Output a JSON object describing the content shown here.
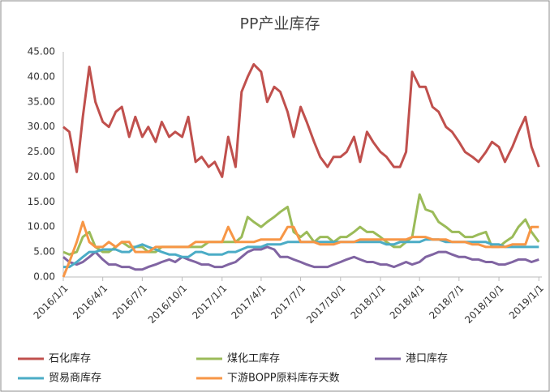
{
  "chart_data": {
    "type": "line",
    "title": "PP产业库存",
    "x": [
      "2016/1/1",
      "2016/1/15",
      "2016/2/1",
      "2016/2/15",
      "2016/3/1",
      "2016/3/15",
      "2016/4/1",
      "2016/4/15",
      "2016/5/1",
      "2016/5/15",
      "2016/6/1",
      "2016/6/15",
      "2016/7/1",
      "2016/7/15",
      "2016/8/1",
      "2016/8/15",
      "2016/9/1",
      "2016/9/15",
      "2016/10/1",
      "2016/10/15",
      "2016/11/1",
      "2016/11/15",
      "2016/12/1",
      "2016/12/15",
      "2017/1/1",
      "2017/1/15",
      "2017/2/1",
      "2017/2/15",
      "2017/3/1",
      "2017/3/15",
      "2017/4/1",
      "2017/4/15",
      "2017/5/1",
      "2017/5/15",
      "2017/6/1",
      "2017/6/15",
      "2017/7/1",
      "2017/7/15",
      "2017/8/1",
      "2017/8/15",
      "2017/9/1",
      "2017/9/15",
      "2017/10/1",
      "2017/10/15",
      "2017/11/1",
      "2017/11/15",
      "2017/12/1",
      "2017/12/15",
      "2018/1/1",
      "2018/1/15",
      "2018/2/1",
      "2018/2/15",
      "2018/3/1",
      "2018/3/15",
      "2018/4/1",
      "2018/4/15",
      "2018/5/1",
      "2018/5/15",
      "2018/6/1",
      "2018/6/15",
      "2018/7/1",
      "2018/7/15",
      "2018/8/1",
      "2018/8/15",
      "2018/9/1",
      "2018/9/15",
      "2018/10/1",
      "2018/10/15",
      "2018/11/1",
      "2018/11/15",
      "2018/12/1",
      "2018/12/15",
      "2019/1/1"
    ],
    "series": [
      {
        "name": "石化库存",
        "color": "#c0504d",
        "values": [
          30,
          29,
          21,
          32,
          42,
          35,
          31,
          30,
          33,
          34,
          28,
          32,
          28,
          30,
          27,
          31,
          28,
          29,
          28,
          32,
          23,
          24,
          22,
          23,
          20,
          28,
          22,
          37,
          40,
          42.5,
          41,
          35,
          38,
          37,
          33,
          28,
          34,
          31,
          27,
          24,
          22,
          24,
          24,
          25,
          28,
          23,
          29,
          27,
          25,
          24,
          22,
          22,
          25,
          41,
          38,
          38,
          34,
          33,
          30,
          29,
          27,
          25,
          24,
          23,
          25,
          27,
          26,
          23,
          26,
          29,
          32,
          26,
          22
        ]
      },
      {
        "name": "煤化工库存",
        "color": "#9bbb59",
        "values": [
          5,
          4.5,
          5,
          8,
          9,
          6,
          5,
          5,
          6,
          7,
          6,
          6,
          6,
          5,
          5,
          6,
          6,
          6,
          6,
          6,
          6,
          6,
          7,
          7,
          7,
          7,
          7,
          8,
          12,
          11,
          10,
          11,
          12,
          13,
          14,
          9,
          8,
          9,
          7,
          8,
          8,
          7,
          8,
          8,
          9,
          10,
          9,
          9,
          8,
          7,
          6,
          6,
          7,
          8,
          16.5,
          13.5,
          13,
          11,
          10,
          9,
          9,
          8,
          8,
          8.5,
          9,
          6,
          6,
          7,
          8,
          10,
          11.5,
          9,
          7
        ]
      },
      {
        "name": "港口库存",
        "color": "#8064a2",
        "values": [
          4,
          3,
          2.5,
          3,
          4,
          5,
          3.5,
          2.5,
          2.5,
          2,
          2,
          1.5,
          1.5,
          2,
          2.5,
          3,
          3.5,
          3,
          4,
          3.5,
          3,
          2.5,
          2.5,
          2,
          2,
          2.5,
          3,
          4,
          5,
          5.5,
          5.5,
          6,
          5.5,
          4,
          4,
          3.5,
          3,
          2.5,
          2,
          2,
          2,
          2.5,
          3,
          3.5,
          4,
          3.5,
          3,
          3,
          2.5,
          2.5,
          2,
          2.5,
          3,
          2.5,
          3,
          4,
          4.5,
          5,
          5,
          4.5,
          4,
          4,
          3.5,
          3.5,
          3,
          3,
          2.5,
          2.5,
          3,
          3.5,
          3.5,
          3,
          3.5
        ]
      },
      {
        "name": "贸易商库存",
        "color": "#4bacc6",
        "values": [
          2,
          2,
          3,
          4,
          5,
          5,
          5.5,
          5.5,
          5.5,
          5,
          5,
          6,
          6.5,
          6,
          5.5,
          5,
          4.5,
          4.5,
          4,
          4,
          5,
          5,
          4.5,
          4.5,
          4.5,
          5,
          5,
          5.5,
          6,
          6,
          6,
          6.5,
          6.5,
          6.5,
          7,
          7,
          7,
          7,
          7,
          7,
          7,
          7,
          7,
          7,
          7,
          7,
          7,
          7,
          7,
          6.5,
          6.5,
          7,
          7,
          7,
          7,
          7.5,
          7.5,
          7.5,
          7,
          7,
          7,
          7,
          7,
          7,
          7,
          6.5,
          6.5,
          6,
          6,
          6,
          6,
          6,
          6
        ]
      },
      {
        "name": "下游BOPP原料库存天数",
        "color": "#f79646",
        "values": [
          0,
          3,
          7,
          11,
          7,
          6,
          6,
          7,
          6,
          7,
          7,
          5,
          5,
          5,
          6,
          6,
          6,
          6,
          6,
          6,
          7,
          7,
          7,
          7,
          7,
          10,
          7,
          7,
          7,
          7,
          7.5,
          7.5,
          7.5,
          7.5,
          10,
          10,
          7,
          7,
          7,
          6.5,
          6.5,
          6.5,
          7,
          7,
          7,
          7.5,
          7.5,
          7.5,
          7.5,
          7.5,
          7.5,
          7.5,
          7.5,
          8,
          8,
          8,
          7.5,
          7.5,
          7.5,
          7,
          7,
          7,
          6.5,
          6.5,
          6,
          6,
          6,
          6,
          6.5,
          6.5,
          6.5,
          10,
          10
        ]
      }
    ],
    "xlim": [
      "2016/1/1",
      "2019/1/8"
    ],
    "xticks": [
      "2016/1/1",
      "2016/4/1",
      "2016/7/1",
      "2016/10/1",
      "2017/1/1",
      "2017/4/1",
      "2017/7/1",
      "2017/10/1",
      "2018/1/1",
      "2018/4/1",
      "2018/7/1",
      "2018/10/1",
      "2019/1/1"
    ],
    "ylim": [
      0,
      45
    ],
    "yticks": [
      {
        "value": 0,
        "label": "0.00"
      },
      {
        "value": 5,
        "label": "5.00"
      },
      {
        "value": 10,
        "label": "10.00"
      },
      {
        "value": 15,
        "label": "15.00"
      },
      {
        "value": 20,
        "label": "20.00"
      },
      {
        "value": 25,
        "label": "25.00"
      },
      {
        "value": 30,
        "label": "30.00"
      },
      {
        "value": 35,
        "label": "35.00"
      },
      {
        "value": 40,
        "label": "40.00"
      },
      {
        "value": 45,
        "label": "45.00"
      }
    ],
    "grid": false,
    "legend": "bottom"
  }
}
